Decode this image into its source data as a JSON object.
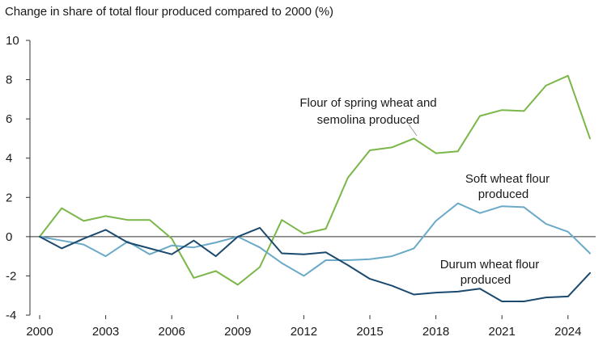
{
  "chart_data": {
    "type": "line",
    "title": "Change in share of total flour produced compared to 2000 (%)",
    "xlabel": "",
    "ylabel": "",
    "x": [
      2000,
      2001,
      2002,
      2003,
      2004,
      2005,
      2006,
      2007,
      2008,
      2009,
      2010,
      2011,
      2012,
      2013,
      2014,
      2015,
      2016,
      2017,
      2018,
      2019,
      2020,
      2021,
      2022,
      2023,
      2024,
      2025
    ],
    "x_ticks": [
      "2000",
      "2003",
      "2006",
      "2009",
      "2012",
      "2015",
      "2018",
      "2021",
      "2024"
    ],
    "ylim": [
      -4,
      10
    ],
    "y_ticks": [
      -4,
      -2,
      0,
      2,
      4,
      6,
      8,
      10
    ],
    "grid": false,
    "zero_line": true,
    "series": [
      {
        "name": "Flour of spring wheat and semolina produced",
        "color": "#7ab648",
        "values": [
          0,
          1.45,
          0.8,
          1.05,
          0.85,
          0.85,
          -0.1,
          -2.1,
          -1.75,
          -2.45,
          -1.55,
          0.85,
          0.15,
          0.4,
          3.0,
          4.4,
          4.55,
          5.0,
          4.25,
          4.35,
          6.15,
          6.45,
          6.4,
          7.7,
          8.2,
          5.0
        ]
      },
      {
        "name": "Soft wheat flour produced",
        "color": "#6aaac8",
        "values": [
          0,
          -0.2,
          -0.4,
          -1.0,
          -0.25,
          -0.9,
          -0.45,
          -0.55,
          -0.3,
          0.0,
          -0.55,
          -1.35,
          -2.0,
          -1.2,
          -1.2,
          -1.15,
          -1.0,
          -0.6,
          0.8,
          1.7,
          1.2,
          1.55,
          1.5,
          0.65,
          0.25,
          -0.85
        ]
      },
      {
        "name": "Durum wheat flour produced",
        "color": "#1c4a6e",
        "values": [
          0,
          -0.6,
          -0.1,
          0.35,
          -0.3,
          -0.6,
          -0.9,
          -0.2,
          -1.0,
          0.0,
          0.45,
          -0.85,
          -0.9,
          -0.8,
          -1.45,
          -2.15,
          -2.5,
          -2.95,
          -2.85,
          -2.8,
          -2.65,
          -3.3,
          -3.3,
          -3.1,
          -3.05,
          -1.85
        ]
      }
    ],
    "annotations": {
      "spring_line1": "Flour of spring wheat and",
      "spring_line2": "semolina produced",
      "soft_line1": "Soft wheat flour",
      "soft_line2": "produced",
      "durum_line1": "Durum wheat flour",
      "durum_line2": "produced"
    }
  }
}
